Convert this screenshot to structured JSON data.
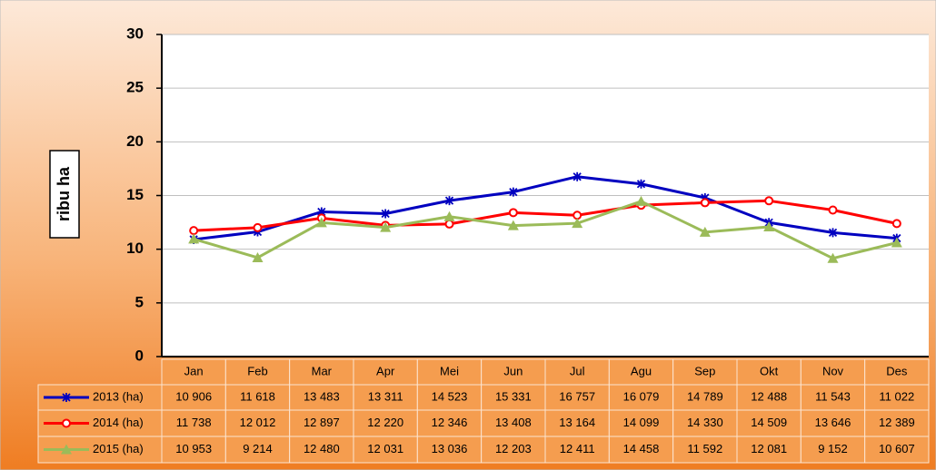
{
  "chart_data": {
    "type": "line",
    "y_axis_label": "ribu ha",
    "categories": [
      "Jan",
      "Feb",
      "Mar",
      "Apr",
      "Mei",
      "Jun",
      "Jul",
      "Agu",
      "Sep",
      "Okt",
      "Nov",
      "Des"
    ],
    "series": [
      {
        "name": "2013 (ha)",
        "color": "#0000c0",
        "marker": "star",
        "values": [
          10.906,
          11.618,
          13.483,
          13.311,
          14.523,
          15.331,
          16.757,
          16.079,
          14.789,
          12.488,
          11.543,
          11.022
        ],
        "value_labels": [
          "10 906",
          "11 618",
          "13 483",
          "13 311",
          "14 523",
          "15 331",
          "16 757",
          "16 079",
          "14 789",
          "12 488",
          "11 543",
          "11 022"
        ]
      },
      {
        "name": "2014 (ha)",
        "color": "#ff0000",
        "marker": "circle",
        "values": [
          11.738,
          12.012,
          12.897,
          12.22,
          12.346,
          13.408,
          13.164,
          14.099,
          14.33,
          14.509,
          13.646,
          12.389
        ],
        "value_labels": [
          "11 738",
          "12 012",
          "12 897",
          "12 220",
          "12 346",
          "13 408",
          "13 164",
          "14 099",
          "14 330",
          "14 509",
          "13 646",
          "12 389"
        ]
      },
      {
        "name": "2015 (ha)",
        "color": "#9bbb59",
        "marker": "triangle",
        "values": [
          10.953,
          9.214,
          12.48,
          12.031,
          13.036,
          12.203,
          12.411,
          14.458,
          11.592,
          12.081,
          9.152,
          10.607
        ],
        "value_labels": [
          "10 953",
          "9 214",
          "12 480",
          "12 031",
          "13 036",
          "12 203",
          "12 411",
          "14 458",
          "11 592",
          "12 081",
          "9 152",
          "10 607"
        ]
      }
    ],
    "ylim": [
      0,
      30
    ],
    "yticks": [
      0,
      5,
      10,
      15,
      20,
      25,
      30
    ],
    "grid": true
  }
}
